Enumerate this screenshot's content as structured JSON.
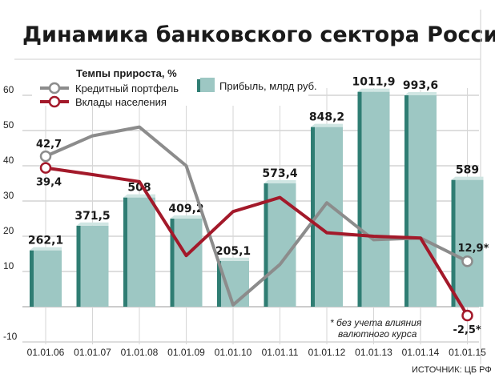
{
  "chart_data": {
    "type": "bar",
    "title": "Динамика банковского сектора России",
    "categories": [
      "01.01.06",
      "01.01.07",
      "01.01.08",
      "01.01.09",
      "01.01.10",
      "01.01.11",
      "01.01.12",
      "01.01.13",
      "01.01.14",
      "01.01.15"
    ],
    "ylim": [
      -10,
      65
    ],
    "yticks": [
      "-10",
      "10",
      "20",
      "30",
      "40",
      "50",
      "60"
    ],
    "bar_series": {
      "name": "Прибыль, млрд руб.",
      "values": [
        262.1,
        371.5,
        508,
        409.2,
        205.1,
        573.4,
        848.2,
        1011.9,
        993.6,
        589
      ],
      "labels": [
        "262,1",
        "371,5",
        "508",
        "409,2",
        "205,1",
        "573,4",
        "848,2",
        "1011,9",
        "993,6",
        "589"
      ],
      "plotted_height": [
        16,
        23,
        31,
        25,
        13,
        35,
        51,
        61,
        60,
        36
      ]
    },
    "legend_title": "Темпы прироста, %",
    "series": [
      {
        "name": "Кредитный портфель",
        "color": "#8c8c8c",
        "values": [
          42.7,
          48.5,
          51,
          40,
          0.5,
          12,
          29.5,
          19,
          19.5,
          12.9
        ]
      },
      {
        "name": "Вклады населения",
        "color": "#a3192a",
        "values": [
          39.4,
          37.5,
          35.5,
          14.5,
          27,
          31,
          21,
          20,
          19.5,
          -2.5
        ]
      }
    ],
    "point_labels": {
      "credit_first": "42,7",
      "credit_last": "12,9*",
      "deposit_first": "39,4",
      "deposit_last": "-2,5*"
    },
    "note": [
      "* без учета влияния",
      "валютного курса"
    ],
    "source": "ИСТОЧНИК: ЦБ РФ",
    "colors": {
      "bar_front": "#9dc7c3",
      "bar_side": "#2f7d73",
      "bar_top": "#d0e6e3",
      "grid": "#bdbdbd",
      "background": "#ffffff"
    }
  }
}
